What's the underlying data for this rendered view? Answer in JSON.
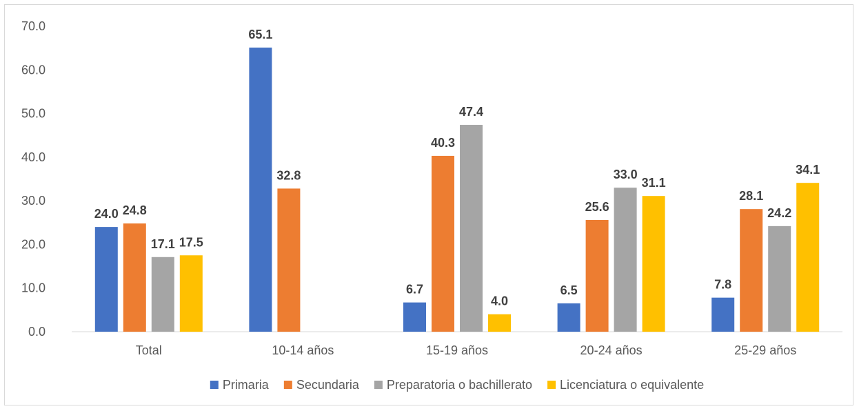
{
  "chart_data": {
    "type": "bar",
    "title": "",
    "xlabel": "",
    "ylabel": "",
    "categories": [
      "Total",
      "10-14 años",
      "15-19 años",
      "20-24 años",
      "25-29 años"
    ],
    "ylim": [
      0,
      70
    ],
    "yticks": [
      "0.0",
      "10.0",
      "20.0",
      "30.0",
      "40.0",
      "50.0",
      "60.0",
      "70.0"
    ],
    "grid": false,
    "legend_position": "bottom",
    "series": [
      {
        "name": "Primaria",
        "color": "#4472C4",
        "values": [
          24.0,
          65.1,
          6.7,
          6.5,
          7.8
        ],
        "labels": [
          "24.0",
          "65.1",
          "6.7",
          "6.5",
          "7.8"
        ]
      },
      {
        "name": "Secundaria",
        "color": "#ED7D31",
        "values": [
          24.8,
          32.8,
          40.3,
          25.6,
          28.1
        ],
        "labels": [
          "24.8",
          "32.8",
          "40.3",
          "25.6",
          "28.1"
        ]
      },
      {
        "name": "Preparatoria o bachillerato",
        "color": "#A5A5A5",
        "values": [
          17.1,
          null,
          47.4,
          33.0,
          24.2
        ],
        "labels": [
          "17.1",
          null,
          "47.4",
          "33.0",
          "24.2"
        ]
      },
      {
        "name": "Licenciatura o equivalente",
        "color": "#FFC000",
        "values": [
          17.5,
          null,
          4.0,
          31.1,
          34.1
        ],
        "labels": [
          "17.5",
          null,
          "4.0",
          "31.1",
          "34.1"
        ]
      }
    ]
  }
}
